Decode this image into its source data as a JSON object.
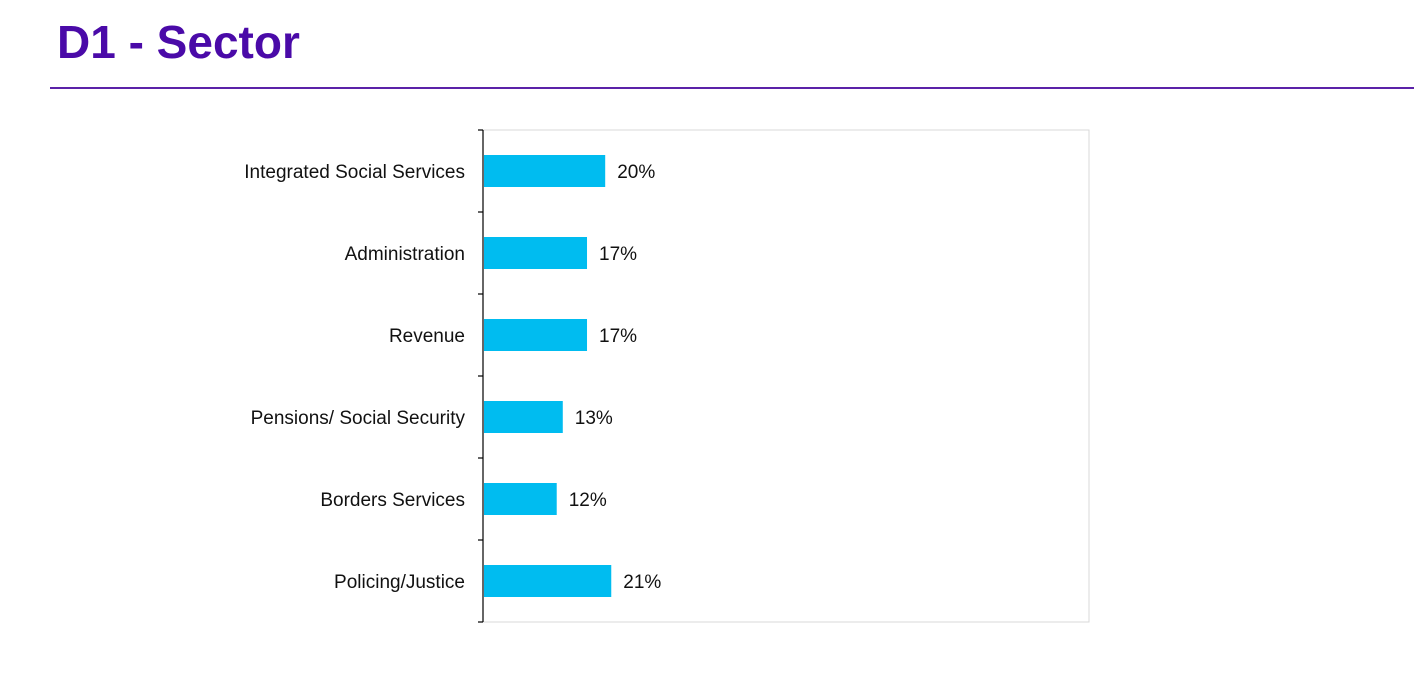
{
  "slide": {
    "title": "D1 - Sector"
  },
  "colors": {
    "title": "#4a0aa8",
    "rule": "#5b22a8",
    "bar": "#00bcf0",
    "axis": "#000000",
    "plot_border": "#d9d9d9"
  },
  "chart_data": {
    "type": "bar",
    "orientation": "horizontal",
    "categories": [
      "Integrated Social Services",
      "Administration",
      "Revenue",
      "Pensions/ Social Security",
      "Borders Services",
      "Policing/Justice"
    ],
    "values": [
      20,
      17,
      17,
      13,
      12,
      21
    ],
    "value_labels": [
      "20%",
      "17%",
      "17%",
      "13%",
      "12%",
      "21%"
    ],
    "unit": "%",
    "xlim": [
      0,
      100
    ],
    "grid": false,
    "legend": "none"
  }
}
